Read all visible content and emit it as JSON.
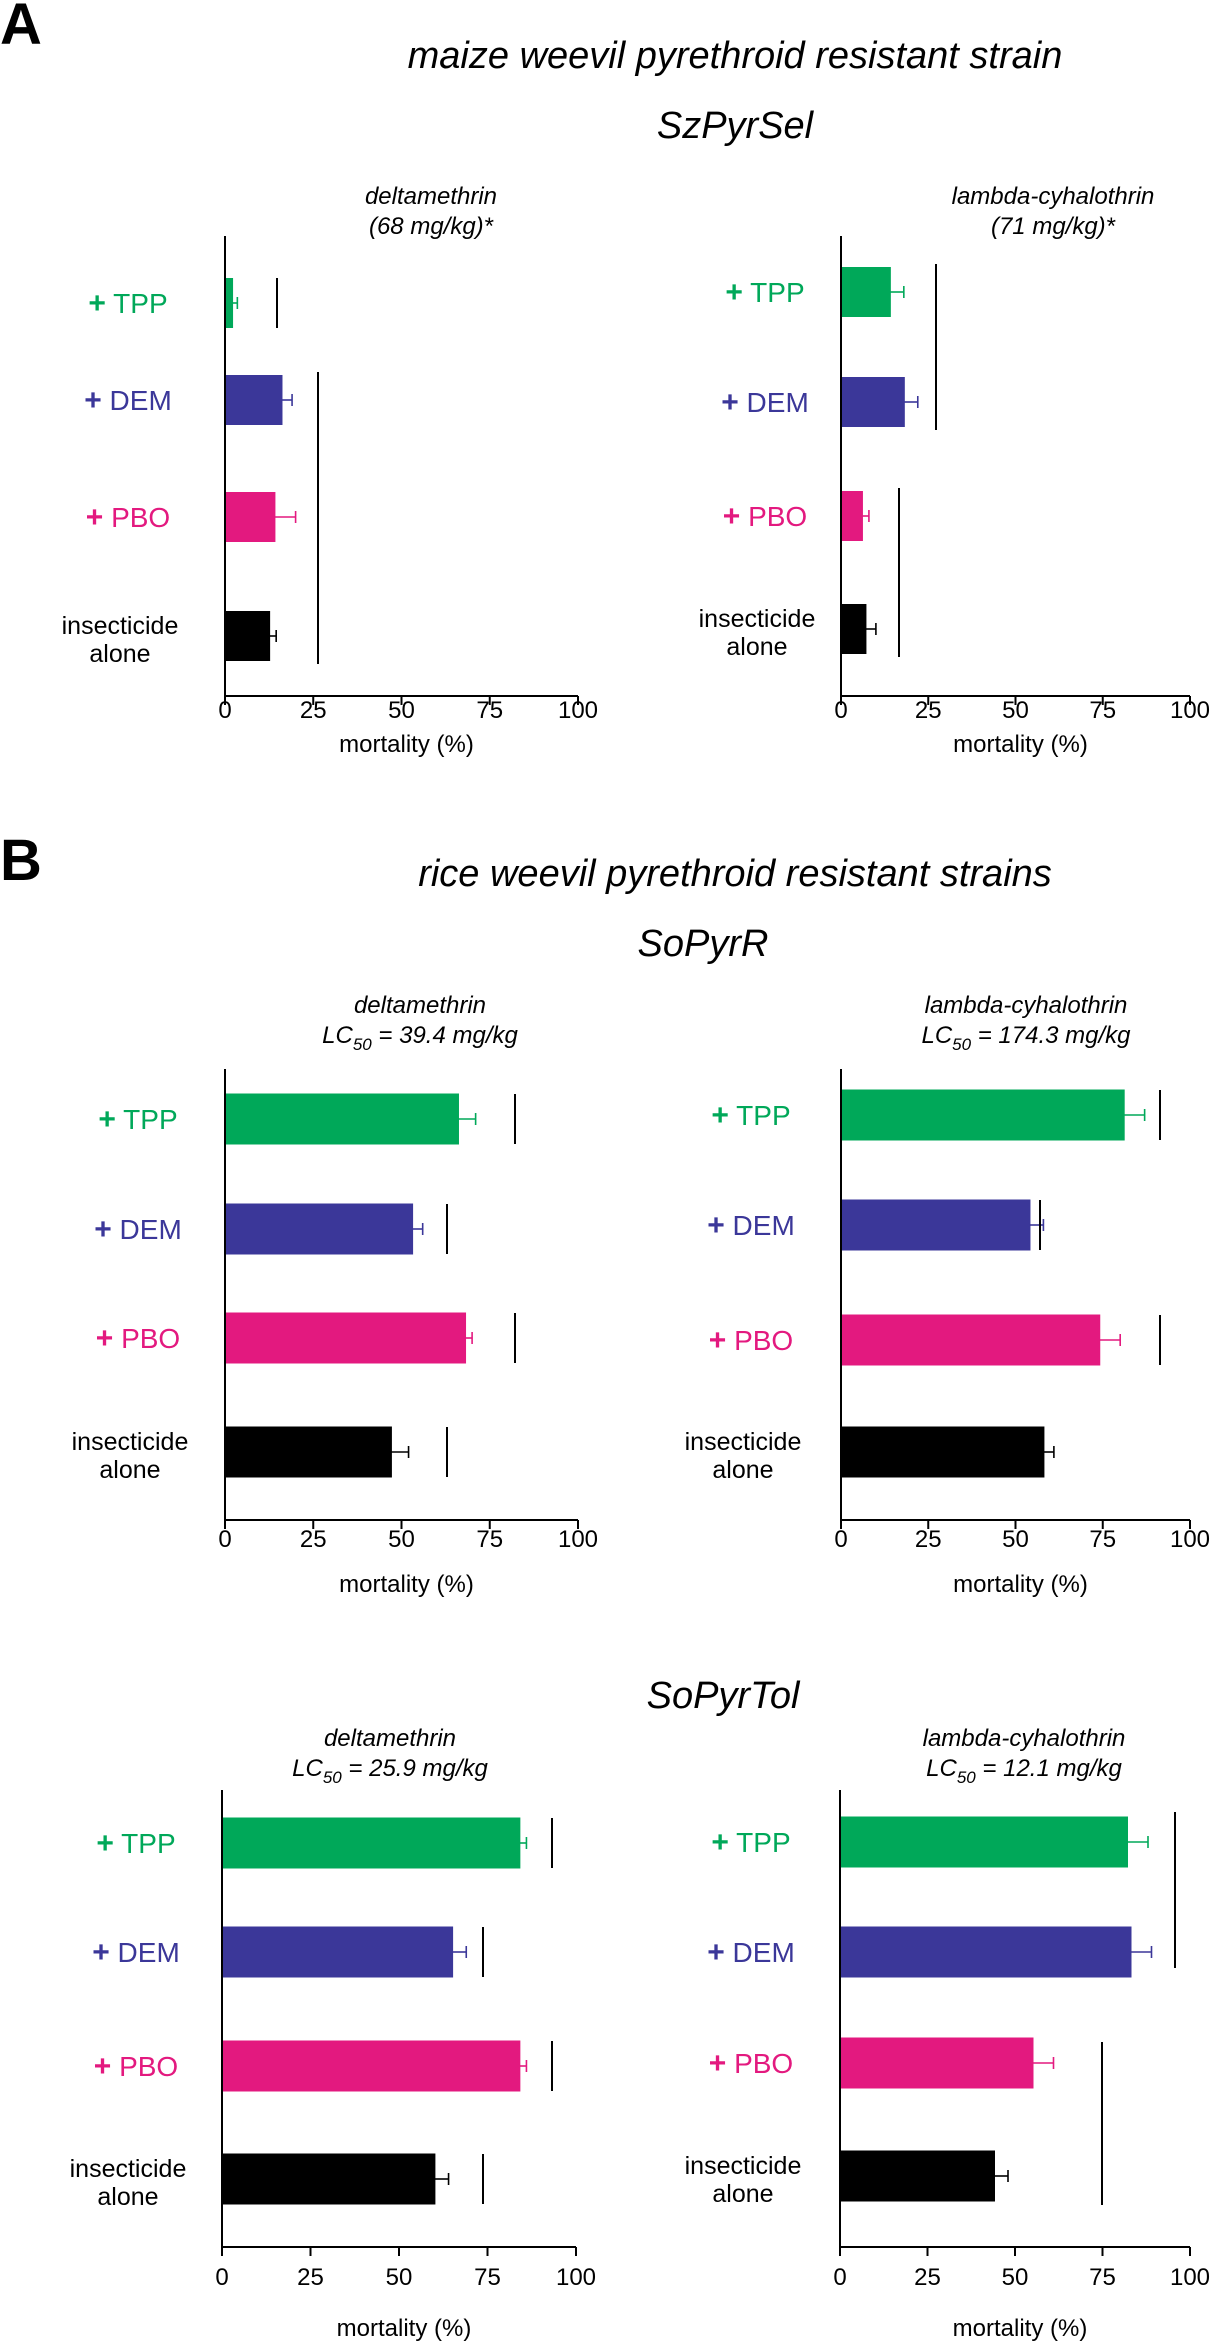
{
  "figure": {
    "panel_a": {
      "letter": "A",
      "title": "maize weevil pyrethroid resistant strain",
      "strain": "SzPyrSel"
    },
    "panel_b": {
      "letter": "B",
      "title": "rice weevil pyrethroid resistant strains",
      "strain1": "SoPyrR",
      "strain2": "SoPyrTol"
    }
  },
  "colors": {
    "TPP": "#00a859",
    "DEM": "#3b3799",
    "PBO": "#e3197f",
    "alone": "#000000"
  },
  "chart_data": [
    {
      "type": "bar",
      "orientation": "horizontal",
      "strain": "SzPyrSel",
      "title_line1": "deltamethrin",
      "title_line2": "(68 mg/kg)*",
      "categories": [
        "+ TPP",
        "+ DEM",
        "+ PBO",
        "insecticide alone"
      ],
      "values": [
        2,
        16,
        14,
        12.5
      ],
      "errors": [
        1.5,
        3,
        6,
        2
      ],
      "xlabel": "mortality (%)",
      "xlim": [
        0,
        100
      ],
      "xticks": [
        0,
        25,
        50,
        75,
        100
      ],
      "significance_groups": [
        [
          0
        ],
        [
          1,
          2,
          3
        ]
      ]
    },
    {
      "type": "bar",
      "orientation": "horizontal",
      "strain": "SzPyrSel",
      "title_line1": "lambda-cyhalothrin",
      "title_line2": "(71 mg/kg)*",
      "categories": [
        "+ TPP",
        "+ DEM",
        "+ PBO",
        "insecticide alone"
      ],
      "values": [
        14,
        18,
        6,
        7
      ],
      "errors": [
        4,
        4,
        2,
        3
      ],
      "xlabel": "mortality (%)",
      "xlim": [
        0,
        100
      ],
      "xticks": [
        0,
        25,
        50,
        75,
        100
      ],
      "significance_groups": [
        [
          0,
          1
        ],
        [
          2,
          3
        ]
      ]
    },
    {
      "type": "bar",
      "orientation": "horizontal",
      "strain": "SoPyrR",
      "title_line1": "deltamethrin",
      "lc_value": " = 39.4 mg/kg",
      "categories": [
        "+ TPP",
        "+ DEM",
        "+ PBO",
        "insecticide alone"
      ],
      "values": [
        66,
        53,
        68,
        47
      ],
      "errors": [
        5,
        3,
        2,
        5
      ],
      "xlabel": "mortality (%)",
      "xlim": [
        0,
        100
      ],
      "xticks": [
        0,
        25,
        50,
        75,
        100
      ],
      "significance_groups": [
        [
          0
        ],
        [
          1
        ],
        [
          2
        ],
        [
          3
        ]
      ]
    },
    {
      "type": "bar",
      "orientation": "horizontal",
      "strain": "SoPyrR",
      "title_line1": "lambda-cyhalothrin",
      "lc_value": " = 174.3 mg/kg",
      "categories": [
        "+ TPP",
        "+ DEM",
        "+ PBO",
        "insecticide alone"
      ],
      "values": [
        81,
        54,
        74,
        58
      ],
      "errors": [
        6,
        4,
        6,
        3
      ],
      "xlabel": "mortality (%)",
      "xlim": [
        0,
        100
      ],
      "xticks": [
        0,
        25,
        50,
        75,
        100
      ],
      "significance_groups": [
        [
          0
        ],
        [
          1
        ],
        [
          2
        ],
        [
          3
        ]
      ]
    },
    {
      "type": "bar",
      "orientation": "horizontal",
      "strain": "SoPyrTol",
      "title_line1": "deltamethrin",
      "lc_value": " = 25.9 mg/kg",
      "categories": [
        "+ TPP",
        "+ DEM",
        "+ PBO",
        "insecticide alone"
      ],
      "values": [
        84,
        65,
        84,
        60
      ],
      "errors": [
        2,
        4,
        2,
        4
      ],
      "xlabel": "mortality (%)",
      "xlim": [
        0,
        100
      ],
      "xticks": [
        0,
        25,
        50,
        75,
        100
      ],
      "significance_groups": [
        [
          0
        ],
        [
          1
        ],
        [
          2
        ],
        [
          3
        ]
      ]
    },
    {
      "type": "bar",
      "orientation": "horizontal",
      "strain": "SoPyrTol",
      "title_line1": "lambda-cyhalothrin",
      "lc_value": " = 12.1 mg/kg",
      "categories": [
        "+ TPP",
        "+ DEM",
        "+ PBO",
        "insecticide alone"
      ],
      "values": [
        82,
        83,
        55,
        44
      ],
      "errors": [
        6,
        6,
        6,
        4
      ],
      "xlabel": "mortality (%)",
      "xlim": [
        0,
        100
      ],
      "xticks": [
        0,
        25,
        50,
        75,
        100
      ],
      "significance_groups": [
        [
          0,
          1
        ],
        [
          2,
          3
        ]
      ]
    }
  ]
}
